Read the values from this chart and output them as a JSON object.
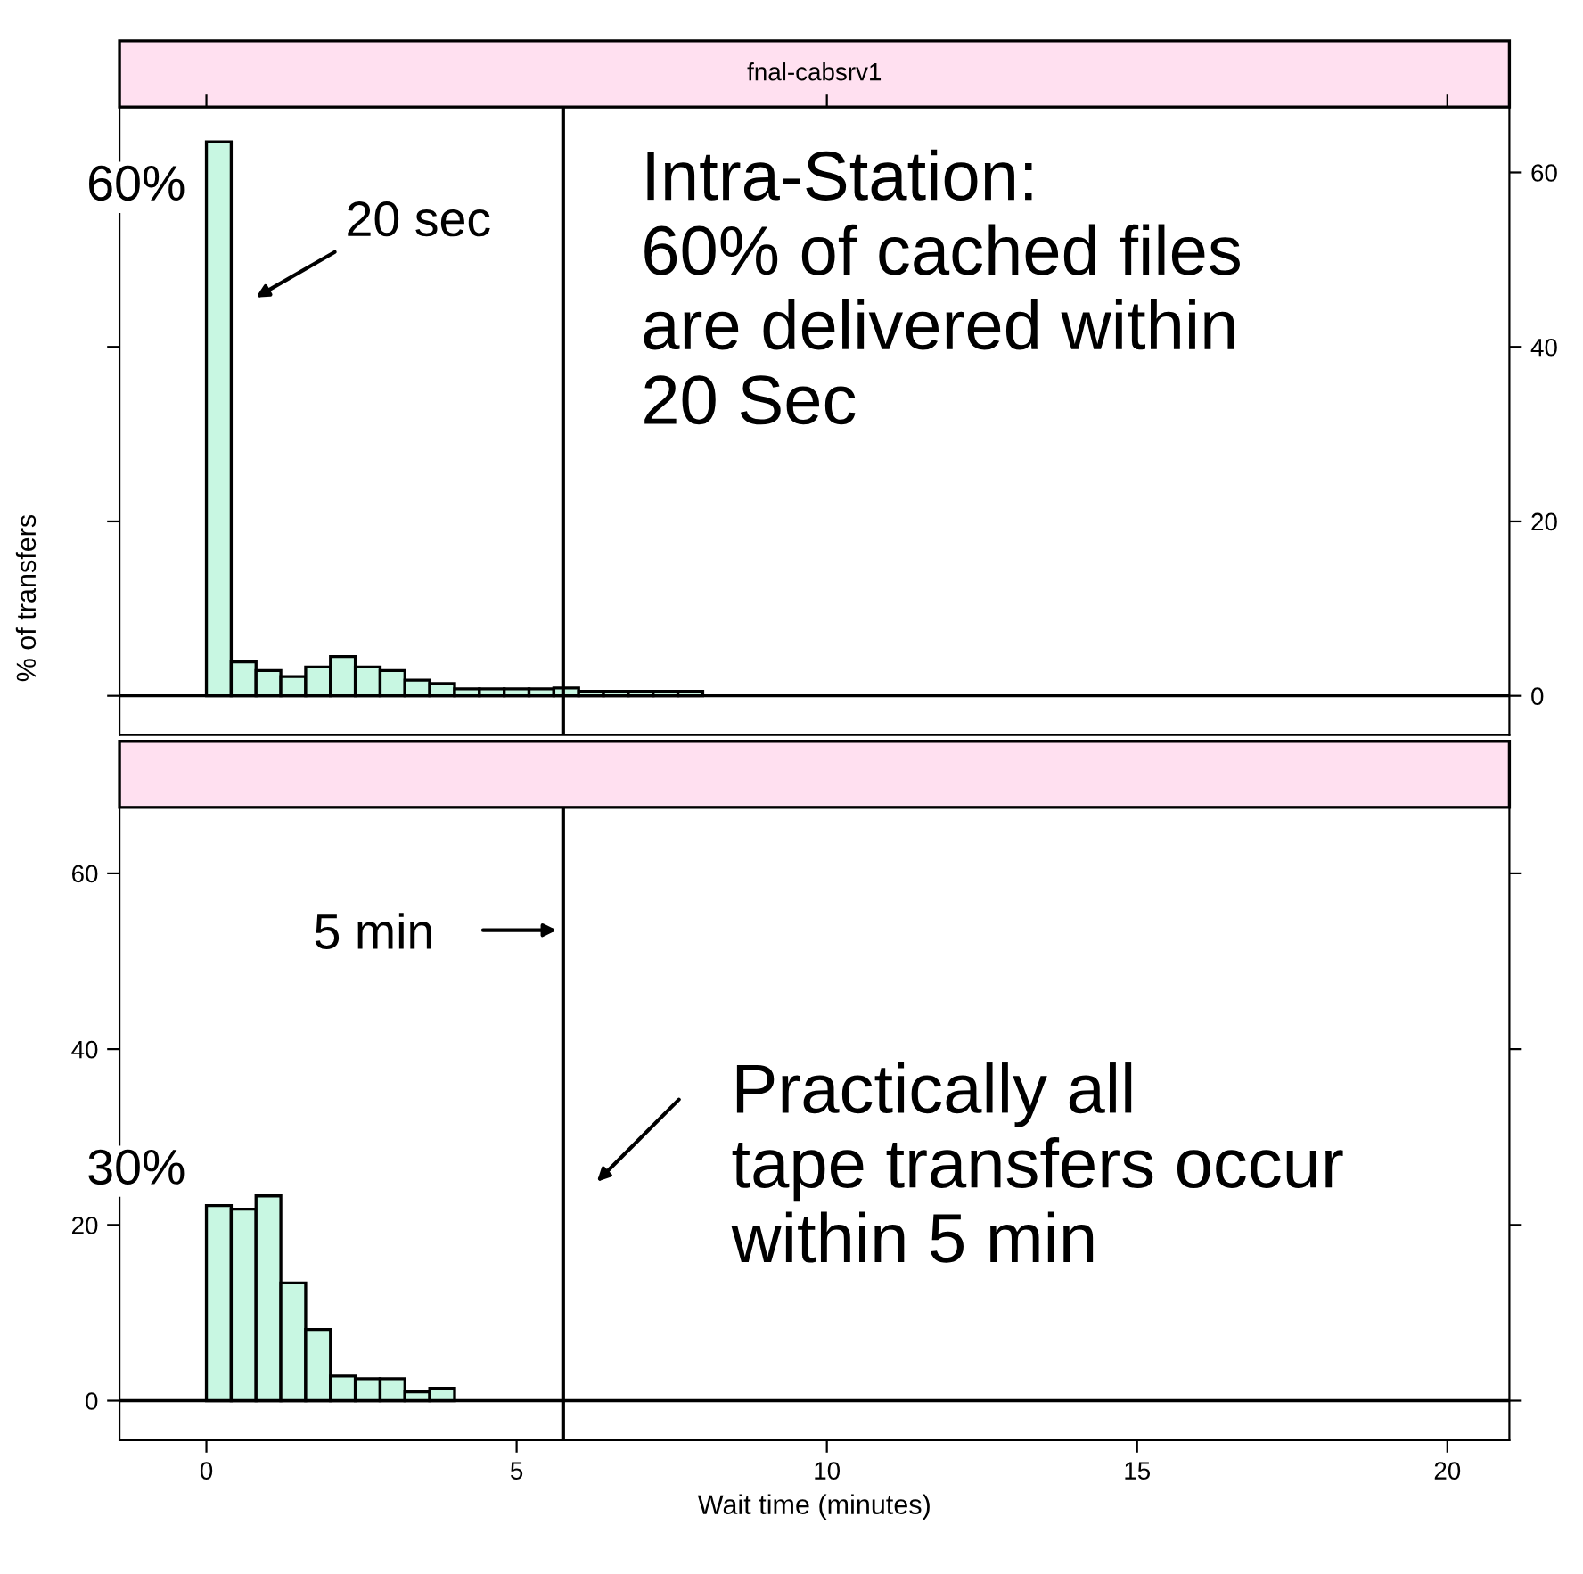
{
  "chart_data": [
    {
      "type": "histogram",
      "title": "fnal-cabsrv1",
      "bins": [
        0,
        0.4,
        0.8,
        1.2,
        1.6,
        2.0,
        2.4,
        2.8,
        3.2,
        3.6,
        4.0,
        4.4,
        4.8,
        5.2,
        5.6,
        6.0,
        6.4,
        6.8,
        7.2,
        7.6,
        8.0
      ],
      "values": [
        63.5,
        3.9,
        2.9,
        2.2,
        3.3,
        4.5,
        3.3,
        2.9,
        1.8,
        1.4,
        0.8,
        0.8,
        0.8,
        0.8,
        0.9,
        0.5,
        0.5,
        0.5,
        0.5,
        0.5
      ],
      "color": "#c8f7e2",
      "xlim": [
        -1.4,
        21
      ],
      "ylim": [
        -4.5,
        67.5
      ],
      "xticks": [
        {
          "value": 0,
          "label": null
        },
        {
          "value": 10,
          "label": null
        },
        {
          "value": 20,
          "label": null
        }
      ],
      "yticks": [
        0,
        20,
        40,
        60
      ],
      "tick_labels": "y",
      "ref_lines": [
        {
          "axis": "x",
          "value": 5.75
        },
        {
          "axis": "y",
          "value": 0
        }
      ],
      "annotations": [
        "60%",
        "20 sec",
        "Intra-Station:\n60% of cached files\nare delivered within\n20 Sec"
      ]
    },
    {
      "type": "histogram",
      "bins": [
        0,
        0.4,
        0.8,
        1.2,
        1.6,
        2.0,
        2.4,
        2.8,
        3.2,
        3.6,
        4.0
      ],
      "values": [
        22.2,
        21.8,
        23.3,
        13.4,
        8.1,
        2.8,
        2.5,
        2.5,
        1.0,
        1.4
      ],
      "color": "#c8f7e2",
      "xlim": [
        -1.4,
        21
      ],
      "ylim": [
        -4.5,
        67.5
      ],
      "xticks": [
        0,
        5,
        10,
        15,
        20
      ],
      "yticks": [
        0,
        20,
        40,
        60
      ],
      "xlabel": "Wait time (minutes)",
      "ylabel": "% of transfers",
      "ref_lines": [
        {
          "axis": "x",
          "value": 5.75
        },
        {
          "axis": "y",
          "value": 0
        }
      ],
      "annotations": [
        "5 min",
        "30%",
        "Practically all\ntape transfers occur\nwithin 5 min"
      ]
    }
  ]
}
